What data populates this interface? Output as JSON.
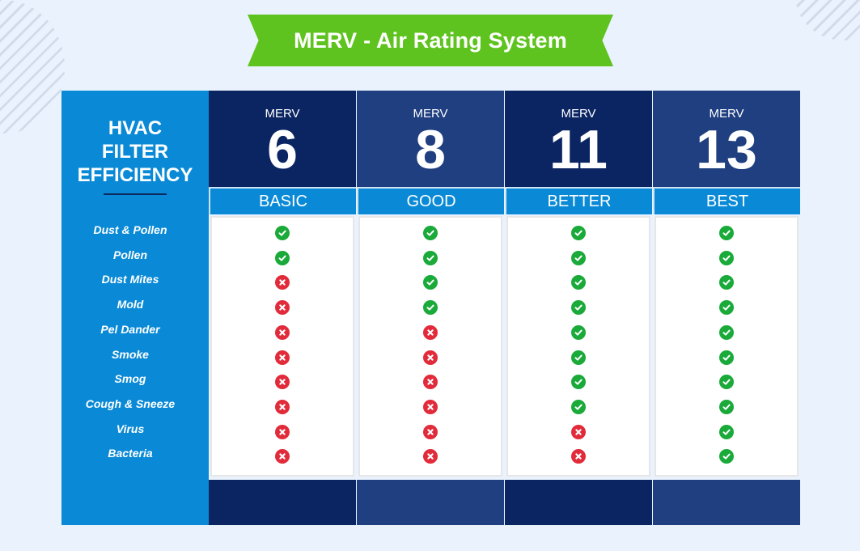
{
  "title": "MERV - Air Rating System",
  "side": {
    "heading_lines": [
      "HVAC",
      "FILTER",
      "EFFICIENCY"
    ],
    "rows": [
      "Dust & Pollen",
      "Pollen",
      "Dust Mites",
      "Mold",
      "Pel Dander",
      "Smoke",
      "Smog",
      "Cough & Sneeze",
      "Virus",
      "Bacteria"
    ]
  },
  "columns": [
    {
      "label": "MERV",
      "rating": "6",
      "tier": "BASIC",
      "header_color": "#0b2563",
      "footer_color": "#0b2563",
      "values": [
        true,
        true,
        false,
        false,
        false,
        false,
        false,
        false,
        false,
        false
      ]
    },
    {
      "label": "MERV",
      "rating": "8",
      "tier": "GOOD",
      "header_color": "#1f3f80",
      "footer_color": "#1f3f80",
      "values": [
        true,
        true,
        true,
        true,
        false,
        false,
        false,
        false,
        false,
        false
      ]
    },
    {
      "label": "MERV",
      "rating": "11",
      "tier": "BETTER",
      "header_color": "#0b2563",
      "footer_color": "#0b2563",
      "values": [
        true,
        true,
        true,
        true,
        true,
        true,
        true,
        true,
        false,
        false
      ]
    },
    {
      "label": "MERV",
      "rating": "13",
      "tier": "BEST",
      "header_color": "#1f3f80",
      "footer_color": "#1f3f80",
      "values": [
        true,
        true,
        true,
        true,
        true,
        true,
        true,
        true,
        true,
        true
      ]
    }
  ],
  "colors": {
    "banner": "#5fc31f",
    "side": "#0a8ad6",
    "check": "#1aaa3a",
    "cross": "#e22b3a",
    "background": "#eaf3fd"
  }
}
